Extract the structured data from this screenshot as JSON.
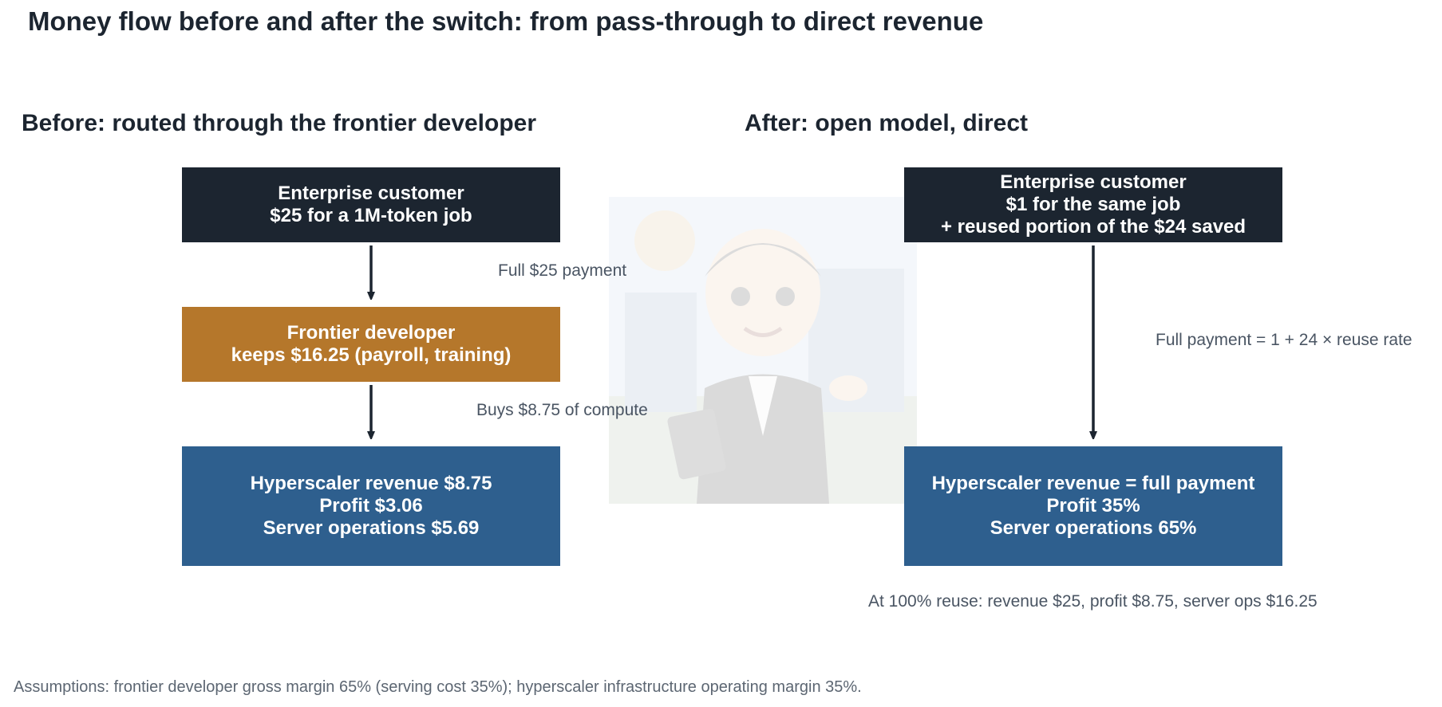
{
  "title": "Money flow before and after the switch: from pass-through to direct revenue",
  "before": {
    "heading": "Before: routed through the frontier developer",
    "customer": {
      "line1": "Enterprise customer",
      "line2": "$25 for a 1M-token job"
    },
    "arrow1_label": "Full $25 payment",
    "developer": {
      "line1": "Frontier developer",
      "line2": "keeps $16.25 (payroll, training)"
    },
    "arrow2_label": "Buys $8.75 of compute",
    "hyperscaler": {
      "line1": "Hyperscaler revenue $8.75",
      "line2": "Profit $3.06",
      "line3": "Server operations $5.69"
    }
  },
  "after": {
    "heading": "After: open model, direct",
    "customer": {
      "line1": "Enterprise customer",
      "line2": "$1 for the same job",
      "line3": "+ reused portion of the $24 saved"
    },
    "arrow_label": "Full payment = 1 + 24 × reuse rate",
    "hyperscaler": {
      "line1": "Hyperscaler revenue = full payment",
      "line2": "Profit 35%",
      "line3": "Server operations 65%"
    },
    "note": "At 100% reuse: revenue $25, profit $8.75, server ops $16.25"
  },
  "footnote": "Assumptions: frontier developer gross margin 65% (serving cost 35%); hyperscaler infrastructure operating margin 35%.",
  "colors": {
    "dark_box": "#1c2530",
    "developer_box": "#b5772b",
    "hyperscaler_box": "#2e5f8e",
    "arrow": "#1c2530"
  },
  "watermark_icon": "mascot-presenter-illustration"
}
